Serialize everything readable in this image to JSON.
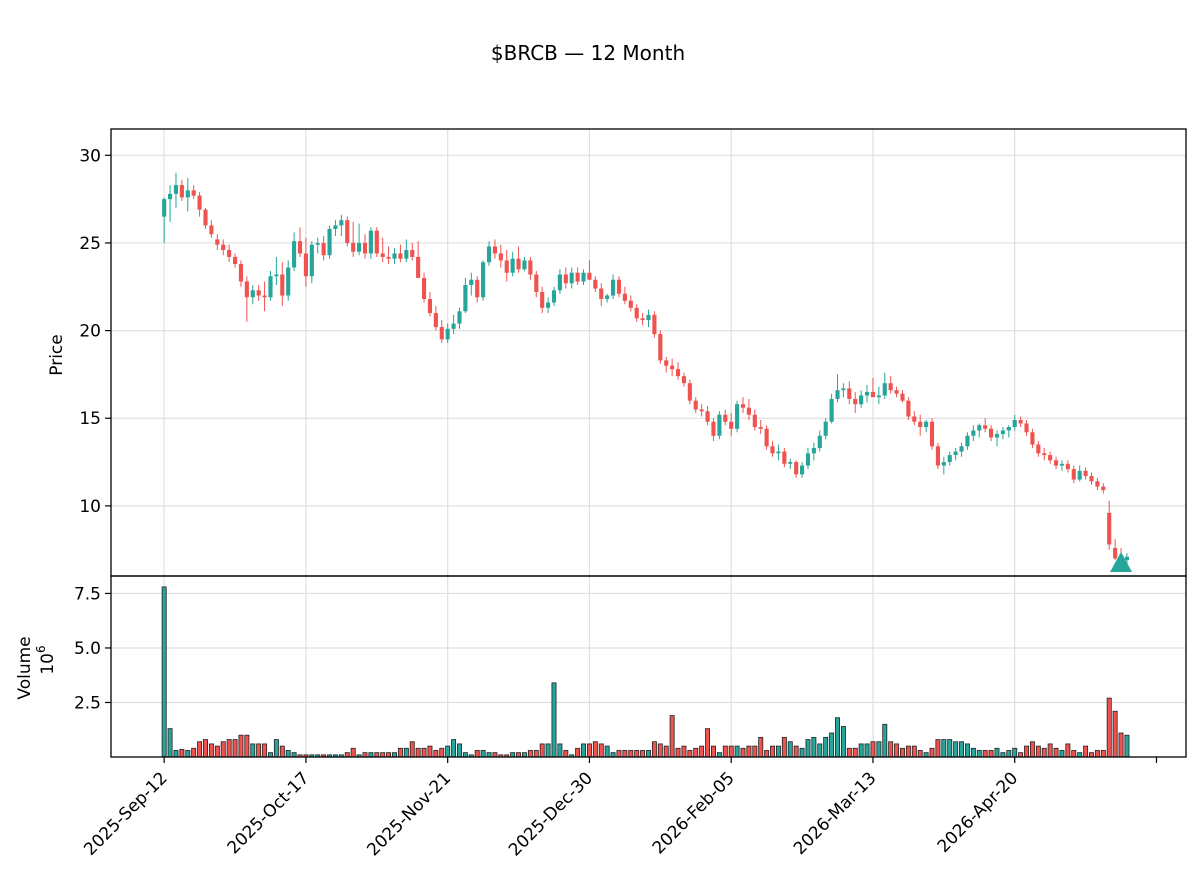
{
  "chart_data": {
    "type": "candlestick",
    "title": "$BRCB — 12 Month",
    "price_panel": {
      "ylabel": "Price",
      "yticks": [
        10,
        15,
        20,
        25,
        30
      ],
      "ylim": [
        6.0,
        31.5
      ],
      "grid": true
    },
    "volume_panel": {
      "ylabel": "Volume",
      "multiplier_label": "10",
      "multiplier_exp": "6",
      "yticks": [
        2.5,
        5.0,
        7.5
      ],
      "ylim": [
        0,
        8.3
      ],
      "grid": true
    },
    "x_tick_labels": [
      "2025-Sep-12",
      "2025-Oct-17",
      "2025-Nov-21",
      "2025-Dec-30",
      "2026-Feb-05",
      "2026-Mar-13",
      "2026-Apr-20"
    ],
    "x_tick_index": [
      0,
      24,
      48,
      72,
      96,
      120,
      144
    ],
    "x_index_range": [
      -9,
      173
    ],
    "up_color": "#26a69a",
    "down_color": "#ef5350",
    "edge_color": "#222222",
    "marker": {
      "shape": "triangle-up",
      "index": 162,
      "price": 6.8,
      "color": "#26a69a"
    },
    "ohlcv": [
      [
        26.5,
        27.6,
        25.0,
        27.5,
        7.8
      ],
      [
        27.5,
        28.3,
        26.2,
        27.8,
        1.3
      ],
      [
        27.8,
        29.0,
        27.0,
        28.3,
        0.3
      ],
      [
        28.3,
        28.6,
        27.4,
        27.6,
        0.35
      ],
      [
        27.6,
        28.7,
        26.8,
        28.0,
        0.3
      ],
      [
        28.0,
        28.3,
        27.5,
        27.7,
        0.4
      ],
      [
        27.7,
        27.9,
        26.5,
        26.9,
        0.7
      ],
      [
        26.9,
        27.0,
        25.8,
        26.0,
        0.8
      ],
      [
        26.0,
        26.3,
        25.3,
        25.5,
        0.6
      ],
      [
        25.2,
        25.5,
        24.6,
        24.9,
        0.5
      ],
      [
        24.9,
        25.2,
        24.3,
        24.6,
        0.7
      ],
      [
        24.6,
        24.9,
        23.9,
        24.2,
        0.8
      ],
      [
        24.2,
        24.4,
        23.6,
        23.8,
        0.8
      ],
      [
        23.8,
        24.0,
        22.5,
        22.8,
        1.0
      ],
      [
        22.8,
        23.1,
        20.5,
        21.9,
        1.0
      ],
      [
        21.9,
        22.6,
        21.5,
        22.3,
        0.6
      ],
      [
        22.3,
        22.6,
        21.7,
        22.0,
        0.6
      ],
      [
        22.0,
        22.8,
        21.1,
        21.9,
        0.6
      ],
      [
        21.9,
        23.4,
        21.7,
        23.1,
        0.2
      ],
      [
        23.1,
        24.2,
        22.6,
        23.2,
        0.8
      ],
      [
        23.2,
        23.9,
        21.4,
        22.0,
        0.5
      ],
      [
        22.0,
        24.0,
        21.7,
        23.6,
        0.3
      ],
      [
        23.6,
        25.6,
        23.4,
        25.1,
        0.2
      ],
      [
        25.1,
        25.9,
        24.2,
        24.4,
        0.1
      ],
      [
        24.4,
        25.3,
        22.5,
        23.1,
        0.1
      ],
      [
        23.1,
        25.1,
        22.7,
        24.9,
        0.1
      ],
      [
        24.9,
        25.3,
        24.4,
        25.0,
        0.1
      ],
      [
        25.0,
        25.4,
        24.0,
        24.3,
        0.1
      ],
      [
        24.3,
        26.0,
        24.1,
        25.8,
        0.1
      ],
      [
        25.8,
        26.3,
        25.4,
        26.0,
        0.1
      ],
      [
        26.0,
        26.6,
        25.4,
        26.3,
        0.1
      ],
      [
        26.3,
        26.5,
        24.8,
        25.0,
        0.2
      ],
      [
        25.0,
        26.2,
        24.2,
        24.5,
        0.4
      ],
      [
        24.5,
        26.1,
        24.3,
        25.0,
        0.1
      ],
      [
        25.0,
        25.5,
        24.1,
        24.4,
        0.2
      ],
      [
        24.4,
        25.9,
        24.1,
        25.7,
        0.2
      ],
      [
        25.7,
        25.9,
        24.2,
        24.4,
        0.2
      ],
      [
        24.4,
        25.3,
        23.9,
        24.2,
        0.2
      ],
      [
        24.2,
        24.8,
        23.8,
        24.1,
        0.2
      ],
      [
        24.1,
        24.7,
        23.8,
        24.4,
        0.2
      ],
      [
        24.4,
        24.9,
        23.9,
        24.1,
        0.4
      ],
      [
        24.1,
        25.2,
        23.9,
        24.6,
        0.4
      ],
      [
        24.6,
        25.0,
        24.0,
        24.2,
        0.7
      ],
      [
        24.2,
        25.1,
        23.3,
        23.0,
        0.4
      ],
      [
        23.0,
        23.3,
        21.6,
        21.8,
        0.4
      ],
      [
        21.8,
        22.2,
        20.8,
        21.0,
        0.5
      ],
      [
        21.0,
        21.4,
        20.0,
        20.2,
        0.3
      ],
      [
        20.2,
        20.6,
        19.3,
        19.5,
        0.4
      ],
      [
        19.5,
        20.4,
        19.3,
        20.1,
        0.5
      ],
      [
        20.1,
        20.9,
        19.8,
        20.4,
        0.8
      ],
      [
        20.4,
        21.3,
        20.1,
        21.1,
        0.6
      ],
      [
        21.1,
        23.0,
        21.0,
        22.6,
        0.2
      ],
      [
        22.6,
        23.3,
        22.0,
        22.9,
        0.1
      ],
      [
        22.9,
        23.1,
        21.6,
        21.9,
        0.3
      ],
      [
        21.9,
        24.0,
        21.7,
        23.9,
        0.3
      ],
      [
        23.9,
        25.1,
        23.7,
        24.8,
        0.2
      ],
      [
        24.8,
        25.2,
        24.1,
        24.4,
        0.2
      ],
      [
        24.4,
        24.9,
        23.6,
        24.0,
        0.1
      ],
      [
        24.0,
        24.6,
        22.8,
        23.3,
        0.1
      ],
      [
        23.3,
        24.5,
        23.1,
        24.1,
        0.2
      ],
      [
        24.1,
        24.8,
        23.3,
        23.5,
        0.2
      ],
      [
        23.5,
        24.2,
        23.4,
        24.0,
        0.2
      ],
      [
        24.0,
        24.2,
        22.9,
        23.2,
        0.3
      ],
      [
        23.2,
        23.4,
        21.9,
        22.2,
        0.3
      ],
      [
        22.2,
        22.5,
        21.0,
        21.3,
        0.6
      ],
      [
        21.3,
        21.9,
        21.0,
        21.6,
        0.6
      ],
      [
        21.6,
        22.5,
        21.4,
        22.3,
        3.4
      ],
      [
        22.3,
        23.5,
        22.1,
        23.2,
        0.6
      ],
      [
        23.2,
        23.6,
        22.4,
        22.7,
        0.3
      ],
      [
        22.7,
        23.6,
        22.4,
        23.3,
        0.1
      ],
      [
        23.3,
        23.6,
        22.6,
        22.8,
        0.4
      ],
      [
        22.8,
        23.5,
        22.6,
        23.3,
        0.6
      ],
      [
        23.3,
        24.0,
        22.9,
        22.9,
        0.6
      ],
      [
        22.9,
        23.1,
        22.2,
        22.4,
        0.7
      ],
      [
        22.4,
        22.7,
        21.4,
        21.8,
        0.6
      ],
      [
        21.8,
        22.1,
        21.6,
        22.0,
        0.5
      ],
      [
        22.0,
        23.2,
        21.8,
        22.9,
        0.2
      ],
      [
        22.9,
        23.1,
        21.9,
        22.1,
        0.3
      ],
      [
        22.1,
        22.5,
        21.5,
        21.7,
        0.3
      ],
      [
        21.7,
        22.0,
        21.1,
        21.3,
        0.3
      ],
      [
        21.3,
        21.5,
        20.5,
        20.7,
        0.3
      ],
      [
        20.7,
        21.0,
        20.3,
        20.6,
        0.3
      ],
      [
        20.6,
        21.2,
        20.2,
        20.9,
        0.3
      ],
      [
        20.9,
        21.1,
        19.6,
        19.8,
        0.7
      ],
      [
        19.8,
        20.0,
        18.1,
        18.3,
        0.6
      ],
      [
        18.3,
        18.5,
        17.6,
        18.0,
        0.5
      ],
      [
        18.0,
        18.4,
        17.4,
        17.8,
        1.9
      ],
      [
        17.8,
        18.2,
        17.2,
        17.4,
        0.4
      ],
      [
        17.4,
        17.6,
        16.8,
        17.0,
        0.5
      ],
      [
        17.0,
        17.2,
        15.8,
        16.0,
        0.3
      ],
      [
        16.0,
        16.2,
        15.3,
        15.5,
        0.4
      ],
      [
        15.5,
        15.8,
        15.1,
        15.4,
        0.5
      ],
      [
        15.4,
        15.7,
        14.6,
        14.8,
        1.3
      ],
      [
        14.8,
        15.0,
        13.7,
        14.0,
        0.5
      ],
      [
        14.0,
        15.4,
        13.8,
        15.2,
        0.2
      ],
      [
        15.2,
        15.5,
        14.6,
        14.8,
        0.5
      ],
      [
        14.8,
        15.3,
        14.0,
        14.4,
        0.5
      ],
      [
        14.4,
        16.0,
        14.2,
        15.8,
        0.5
      ],
      [
        15.8,
        16.2,
        15.3,
        15.6,
        0.4
      ],
      [
        15.6,
        16.1,
        14.9,
        15.2,
        0.5
      ],
      [
        15.2,
        15.5,
        14.3,
        14.5,
        0.5
      ],
      [
        14.5,
        14.9,
        14.1,
        14.4,
        0.9
      ],
      [
        14.4,
        14.6,
        13.2,
        13.4,
        0.3
      ],
      [
        13.4,
        13.7,
        12.8,
        13.0,
        0.5
      ],
      [
        13.0,
        13.5,
        12.6,
        13.1,
        0.5
      ],
      [
        13.1,
        13.3,
        12.2,
        12.4,
        0.9
      ],
      [
        12.4,
        12.7,
        12.1,
        12.5,
        0.7
      ],
      [
        12.5,
        12.6,
        11.6,
        11.8,
        0.5
      ],
      [
        11.8,
        12.5,
        11.6,
        12.3,
        0.4
      ],
      [
        12.3,
        13.3,
        12.1,
        13.0,
        0.8
      ],
      [
        13.0,
        13.6,
        12.6,
        13.3,
        0.9
      ],
      [
        13.3,
        14.3,
        13.1,
        14.0,
        0.6
      ],
      [
        14.0,
        15.0,
        13.8,
        14.8,
        0.9
      ],
      [
        14.8,
        16.4,
        14.7,
        16.1,
        1.1
      ],
      [
        16.1,
        17.5,
        15.9,
        16.6,
        1.8
      ],
      [
        16.6,
        17.0,
        16.2,
        16.7,
        1.4
      ],
      [
        16.7,
        17.1,
        15.8,
        16.1,
        0.4
      ],
      [
        16.1,
        16.5,
        15.3,
        15.8,
        0.4
      ],
      [
        15.8,
        16.6,
        15.6,
        16.3,
        0.6
      ],
      [
        16.3,
        16.9,
        15.9,
        16.5,
        0.6
      ],
      [
        16.5,
        17.3,
        16.3,
        16.2,
        0.7
      ],
      [
        16.2,
        16.8,
        15.8,
        16.3,
        0.7
      ],
      [
        16.3,
        17.6,
        16.1,
        17.0,
        1.5
      ],
      [
        17.0,
        17.4,
        16.4,
        16.6,
        0.7
      ],
      [
        16.6,
        16.8,
        16.2,
        16.4,
        0.6
      ],
      [
        16.4,
        16.6,
        15.9,
        16.0,
        0.4
      ],
      [
        16.0,
        16.2,
        14.9,
        15.1,
        0.5
      ],
      [
        15.1,
        15.4,
        14.6,
        14.8,
        0.5
      ],
      [
        14.8,
        15.2,
        14.0,
        14.5,
        0.3
      ],
      [
        14.5,
        14.9,
        14.2,
        14.8,
        0.2
      ],
      [
        14.8,
        15.0,
        13.2,
        13.4,
        0.4
      ],
      [
        13.4,
        13.6,
        12.1,
        12.3,
        0.8
      ],
      [
        12.3,
        12.8,
        11.8,
        12.5,
        0.8
      ],
      [
        12.5,
        13.1,
        12.3,
        12.9,
        0.8
      ],
      [
        12.9,
        13.3,
        12.6,
        13.1,
        0.7
      ],
      [
        13.1,
        13.6,
        12.8,
        13.4,
        0.7
      ],
      [
        13.4,
        14.2,
        13.2,
        14.0,
        0.6
      ],
      [
        14.0,
        14.6,
        13.7,
        14.3,
        0.4
      ],
      [
        14.3,
        14.7,
        13.9,
        14.6,
        0.3
      ],
      [
        14.6,
        15.0,
        14.2,
        14.4,
        0.3
      ],
      [
        14.4,
        14.6,
        13.7,
        13.9,
        0.3
      ],
      [
        13.9,
        14.3,
        13.4,
        14.1,
        0.4
      ],
      [
        14.1,
        14.5,
        13.8,
        14.3,
        0.2
      ],
      [
        14.3,
        14.6,
        13.9,
        14.5,
        0.3
      ],
      [
        14.5,
        15.2,
        14.3,
        14.9,
        0.4
      ],
      [
        14.9,
        15.1,
        14.5,
        14.7,
        0.2
      ],
      [
        14.7,
        14.9,
        14.0,
        14.2,
        0.5
      ],
      [
        14.2,
        14.4,
        13.3,
        13.5,
        0.7
      ],
      [
        13.5,
        13.7,
        12.8,
        13.0,
        0.5
      ],
      [
        13.0,
        13.3,
        12.6,
        12.9,
        0.4
      ],
      [
        12.9,
        13.1,
        12.4,
        12.6,
        0.6
      ],
      [
        12.6,
        12.8,
        12.1,
        12.3,
        0.4
      ],
      [
        12.3,
        12.6,
        12.0,
        12.4,
        0.3
      ],
      [
        12.4,
        12.6,
        11.9,
        12.1,
        0.6
      ],
      [
        12.1,
        12.3,
        11.3,
        11.5,
        0.3
      ],
      [
        11.5,
        12.3,
        11.4,
        12.0,
        0.2
      ],
      [
        12.0,
        12.2,
        11.5,
        11.7,
        0.5
      ],
      [
        11.7,
        11.9,
        11.2,
        11.4,
        0.2
      ],
      [
        11.4,
        11.6,
        10.9,
        11.1,
        0.3
      ],
      [
        11.1,
        11.3,
        10.7,
        10.9,
        0.3
      ],
      [
        9.6,
        10.3,
        7.5,
        7.8,
        2.7
      ],
      [
        7.6,
        8.1,
        6.9,
        7.0,
        2.1
      ],
      [
        7.2,
        7.6,
        6.8,
        6.9,
        1.1
      ],
      [
        6.9,
        7.3,
        6.7,
        7.1,
        1.0
      ]
    ]
  }
}
